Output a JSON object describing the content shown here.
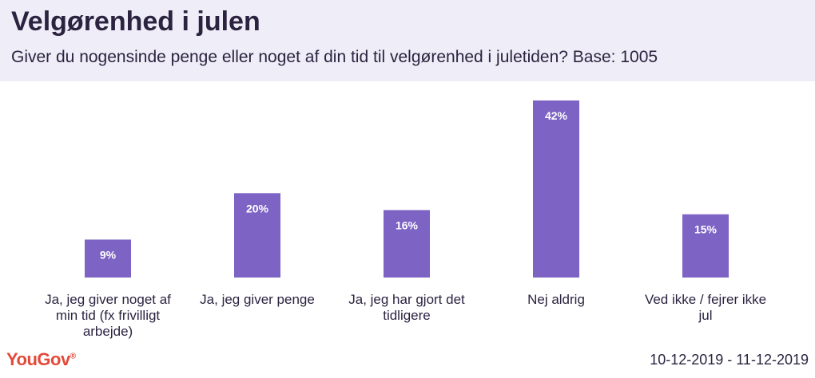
{
  "header": {
    "title": "Velgørenhed i julen",
    "subtitle": "Giver du nogensinde penge eller noget af din tid til velgørenhed i juletiden? Base: 1005"
  },
  "chart_data": {
    "type": "bar",
    "categories": [
      [
        "Ja, jeg giver noget af",
        "min tid (fx frivilligt",
        "arbejde)"
      ],
      [
        "Ja, jeg giver penge"
      ],
      [
        "Ja, jeg har gjort det",
        "tidligere"
      ],
      [
        "Nej aldrig"
      ],
      [
        "Ved ikke / fejrer ikke",
        "jul"
      ]
    ],
    "values": [
      9,
      20,
      16,
      42,
      15
    ],
    "value_labels": [
      "9%",
      "20%",
      "16%",
      "42%",
      "15%"
    ],
    "title": "Velgørenhed i julen",
    "ylim": [
      0,
      42
    ],
    "bar_color": "#7c63c4",
    "grid": false,
    "legend": "none"
  },
  "footer": {
    "logo": "YouGov",
    "date_range": "10-12-2019 - 11-12-2019"
  },
  "colors": {
    "header_bg": "#efedf7",
    "text": "#2b2340",
    "bar": "#7c63c4",
    "brand": "#e34a3b"
  }
}
